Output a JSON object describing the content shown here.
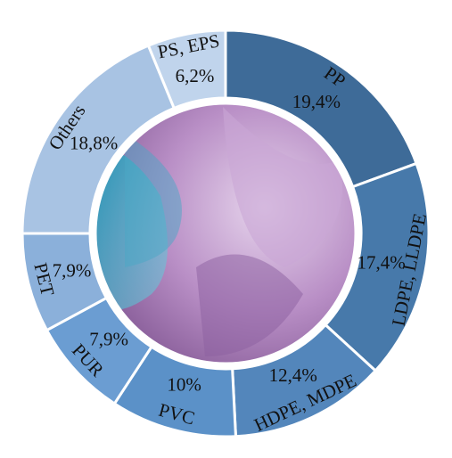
{
  "chart_data": {
    "type": "donut",
    "categories": [
      "PP",
      "LDPE, LLDPE",
      "HDPE, MDPE",
      "PVC",
      "PUR",
      "PET",
      "Others",
      "PS, EPS"
    ],
    "values": [
      19.4,
      17.4,
      12.4,
      10,
      7.9,
      7.9,
      18.8,
      6.2
    ],
    "value_labels": [
      "19,4%",
      "17,4%",
      "12,4%",
      "10%",
      "7,9%",
      "7,9%",
      "18,8%",
      "6,2%"
    ],
    "colors": [
      "#3e6b98",
      "#4779aa",
      "#5386bb",
      "#5b91c8",
      "#6b9dd2",
      "#8bb0da",
      "#a8c3e3",
      "#c0d4ec"
    ]
  }
}
